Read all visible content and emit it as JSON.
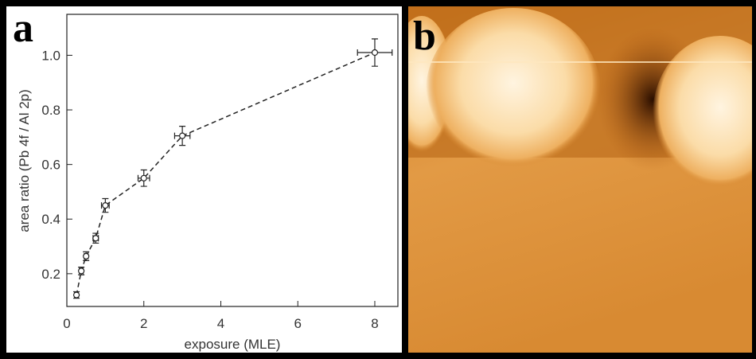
{
  "chart_data": {
    "type": "scatter",
    "panel_label": "a",
    "x_label": "exposure (MLE)",
    "y_label": "area ratio (Pb 4f / Al 2p)",
    "x": [
      0.25,
      0.375,
      0.5,
      0.75,
      1.0,
      2.0,
      3.0,
      8.0
    ],
    "xerr": [
      0.05,
      0.05,
      0.05,
      0.07,
      0.1,
      0.15,
      0.2,
      0.45
    ],
    "values": [
      0.122,
      0.21,
      0.264,
      0.33,
      0.45,
      0.55,
      0.705,
      1.01
    ],
    "yerr": [
      0.012,
      0.014,
      0.016,
      0.018,
      0.025,
      0.03,
      0.035,
      0.05
    ],
    "color": "#222222",
    "line_style": "dashed",
    "xlim": [
      0,
      8.6
    ],
    "ylim": [
      0.08,
      1.15
    ],
    "xticks": [
      0,
      2,
      4,
      6,
      8
    ],
    "yticks": [
      0.2,
      0.4,
      0.6,
      0.8,
      {
        "value": 1.0,
        "label": "1.0"
      }
    ]
  },
  "image": {
    "panel_label": "b"
  }
}
